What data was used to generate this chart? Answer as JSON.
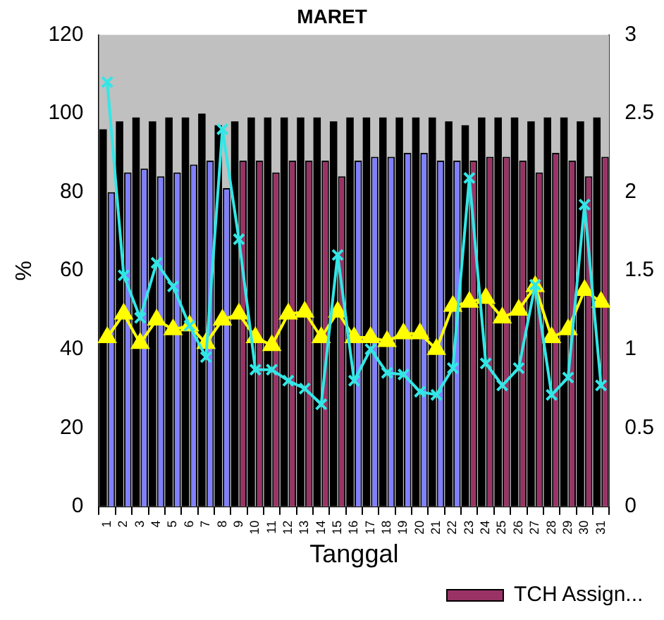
{
  "chart_data": {
    "type": "bar",
    "title": "MARET",
    "xlabel": "Tanggal",
    "ylabel": "%",
    "categories": [
      "1",
      "2",
      "3",
      "4",
      "5",
      "6",
      "7",
      "8",
      "9",
      "10",
      "11",
      "12",
      "13",
      "14",
      "15",
      "16",
      "17",
      "18",
      "19",
      "20",
      "21",
      "22",
      "23",
      "24",
      "25",
      "26",
      "27",
      "28",
      "29",
      "30",
      "31"
    ],
    "series": [
      {
        "color": "#000000",
        "values": [
          96,
          98,
          99,
          98,
          99,
          99,
          100,
          97,
          98,
          99,
          99,
          99,
          99,
          99,
          98,
          99,
          99,
          99,
          99,
          99,
          99,
          98,
          97,
          99,
          99,
          99,
          98,
          99,
          99,
          98,
          99
        ]
      },
      {
        "name": "TCH Assign...",
        "color": "#993366",
        "colors": [
          "#8080ff",
          "#8080ff",
          "#8080ff",
          "#8080ff",
          "#8080ff",
          "#8080ff",
          "#8080ff",
          "#8080ff",
          "#993366",
          "#993366",
          "#993366",
          "#993366",
          "#993366",
          "#993366",
          "#993366",
          "#8080ff",
          "#8080ff",
          "#8080ff",
          "#8080ff",
          "#8080ff",
          "#8080ff",
          "#8080ff",
          "#993366",
          "#993366",
          "#993366",
          "#993366",
          "#993366",
          "#993366",
          "#993366",
          "#993366",
          "#993366"
        ],
        "values": [
          80,
          85,
          86,
          84,
          85,
          87,
          88,
          81,
          88,
          88,
          85,
          88,
          88,
          88,
          84,
          88,
          89,
          89,
          90,
          90,
          88,
          88,
          88,
          89,
          89,
          88,
          85,
          90,
          88,
          84,
          89
        ]
      },
      {
        "type": "line",
        "color": "#ffff00",
        "marker": "triangle",
        "values": [
          43,
          49,
          41.5,
          47.5,
          45,
          46,
          41.5,
          47.5,
          49,
          43,
          41,
          49,
          49.5,
          43,
          49.5,
          43,
          43,
          42,
          44,
          44,
          40,
          51,
          52,
          53,
          48,
          50,
          56,
          43,
          45,
          55,
          52
        ]
      },
      {
        "type": "line",
        "axis": "y2",
        "color": "#33e6e6",
        "marker": "cross",
        "values": [
          2.7,
          1.47,
          1.2,
          1.55,
          1.4,
          1.15,
          0.95,
          2.4,
          1.7,
          0.87,
          0.87,
          0.8,
          0.75,
          0.65,
          1.6,
          0.8,
          1.0,
          0.85,
          0.84,
          0.73,
          0.71,
          0.88,
          2.09,
          0.91,
          0.77,
          0.88,
          1.41,
          0.71,
          0.82,
          1.92,
          0.77
        ]
      }
    ],
    "ylim": [
      0,
      120
    ],
    "yticks": [
      0,
      20,
      40,
      60,
      80,
      100,
      120
    ],
    "y2lim": [
      0,
      3
    ],
    "y2ticks": [
      0,
      0.5,
      1,
      1.5,
      2,
      2.5,
      3
    ],
    "grid": false,
    "legend": "bottom right"
  }
}
